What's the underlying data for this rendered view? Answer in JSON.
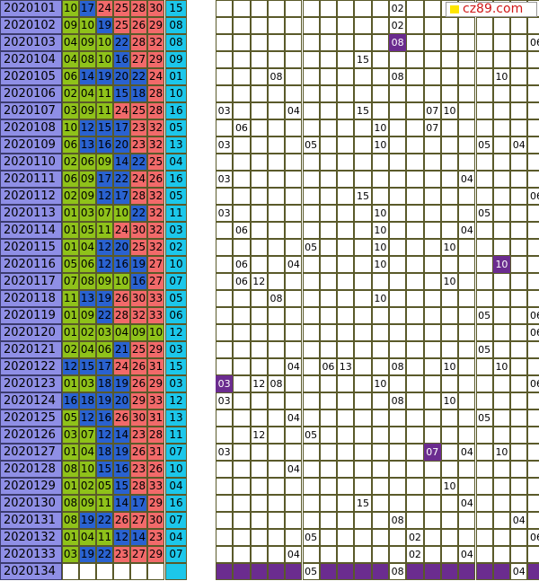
{
  "logo": {
    "text": "cz89.com"
  },
  "rows": [
    {
      "issue": "2020101",
      "reds": [
        "10",
        "17",
        "24",
        "25",
        "28",
        "30"
      ],
      "blue": "15",
      "miss": {
        "10": "02"
      }
    },
    {
      "issue": "2020102",
      "reds": [
        "09",
        "10",
        "19",
        "25",
        "26",
        "29"
      ],
      "blue": "08",
      "miss": {
        "10": "02"
      }
    },
    {
      "issue": "2020103",
      "reds": [
        "04",
        "09",
        "10",
        "22",
        "28",
        "32"
      ],
      "blue": "08",
      "miss": {
        "10": "08",
        "18": "06"
      },
      "purple": [
        "10"
      ]
    },
    {
      "issue": "2020104",
      "reds": [
        "04",
        "08",
        "10",
        "16",
        "27",
        "29"
      ],
      "blue": "09",
      "miss": {
        "8": "15"
      }
    },
    {
      "issue": "2020105",
      "reds": [
        "06",
        "14",
        "19",
        "20",
        "22",
        "24"
      ],
      "blue": "01",
      "miss": {
        "3": "08",
        "10": "08",
        "16": "10"
      }
    },
    {
      "issue": "2020106",
      "reds": [
        "02",
        "04",
        "11",
        "15",
        "18",
        "28"
      ],
      "blue": "10",
      "miss": {}
    },
    {
      "issue": "2020107",
      "reds": [
        "03",
        "09",
        "11",
        "24",
        "25",
        "28"
      ],
      "blue": "16",
      "miss": {
        "0": "03",
        "4": "04",
        "8": "15",
        "12": "07",
        "13": "10"
      }
    },
    {
      "issue": "2020108",
      "reds": [
        "10",
        "12",
        "15",
        "17",
        "23",
        "32"
      ],
      "blue": "05",
      "miss": {
        "1": "06",
        "9": "10",
        "12": "07"
      }
    },
    {
      "issue": "2020109",
      "reds": [
        "06",
        "13",
        "16",
        "20",
        "23",
        "32"
      ],
      "blue": "13",
      "miss": {
        "0": "03",
        "5": "05",
        "9": "10",
        "15": "05",
        "17": "04"
      }
    },
    {
      "issue": "2020110",
      "reds": [
        "02",
        "06",
        "09",
        "14",
        "22",
        "25"
      ],
      "blue": "04",
      "miss": {}
    },
    {
      "issue": "2020111",
      "reds": [
        "06",
        "09",
        "17",
        "22",
        "24",
        "26"
      ],
      "blue": "16",
      "miss": {
        "0": "03",
        "14": "04"
      }
    },
    {
      "issue": "2020112",
      "reds": [
        "02",
        "09",
        "12",
        "17",
        "28",
        "32"
      ],
      "blue": "05",
      "miss": {
        "8": "15",
        "18": "06"
      }
    },
    {
      "issue": "2020113",
      "reds": [
        "01",
        "03",
        "07",
        "10",
        "22",
        "32"
      ],
      "blue": "11",
      "miss": {
        "0": "03",
        "9": "10",
        "15": "05"
      }
    },
    {
      "issue": "2020114",
      "reds": [
        "01",
        "05",
        "11",
        "24",
        "30",
        "32"
      ],
      "blue": "03",
      "miss": {
        "1": "06",
        "9": "10",
        "14": "04"
      }
    },
    {
      "issue": "2020115",
      "reds": [
        "01",
        "04",
        "12",
        "20",
        "25",
        "32"
      ],
      "blue": "02",
      "miss": {
        "5": "05",
        "9": "10",
        "13": "10"
      }
    },
    {
      "issue": "2020116",
      "reds": [
        "05",
        "06",
        "12",
        "16",
        "19",
        "27"
      ],
      "blue": "10",
      "miss": {
        "1": "06",
        "4": "04",
        "9": "10",
        "16": "10"
      },
      "purple": [
        "16"
      ]
    },
    {
      "issue": "2020117",
      "reds": [
        "07",
        "08",
        "09",
        "10",
        "16",
        "27"
      ],
      "blue": "07",
      "miss": {
        "1": "06",
        "2": "12",
        "13": "10"
      }
    },
    {
      "issue": "2020118",
      "reds": [
        "11",
        "13",
        "19",
        "26",
        "30",
        "33"
      ],
      "blue": "05",
      "miss": {
        "3": "08",
        "9": "10"
      }
    },
    {
      "issue": "2020119",
      "reds": [
        "01",
        "09",
        "22",
        "28",
        "32",
        "33"
      ],
      "blue": "06",
      "miss": {
        "15": "05",
        "18": "06"
      }
    },
    {
      "issue": "2020120",
      "reds": [
        "01",
        "02",
        "03",
        "04",
        "09",
        "10"
      ],
      "blue": "12",
      "miss": {
        "18": "06"
      }
    },
    {
      "issue": "2020121",
      "reds": [
        "02",
        "04",
        "06",
        "21",
        "25",
        "29"
      ],
      "blue": "03",
      "miss": {
        "15": "05"
      }
    },
    {
      "issue": "2020122",
      "reds": [
        "12",
        "15",
        "17",
        "24",
        "26",
        "31"
      ],
      "blue": "15",
      "miss": {
        "4": "04",
        "6": "06",
        "7": "13",
        "10": "08",
        "13": "10",
        "16": "10"
      }
    },
    {
      "issue": "2020123",
      "reds": [
        "01",
        "03",
        "18",
        "19",
        "26",
        "29"
      ],
      "blue": "03",
      "miss": {
        "-1": "03",
        "2": "12",
        "3": "08",
        "9": "10",
        "18": "06"
      },
      "purple": [
        "-1"
      ]
    },
    {
      "issue": "2020124",
      "reds": [
        "16",
        "18",
        "19",
        "20",
        "29",
        "33"
      ],
      "blue": "12",
      "miss": {
        "0": "03",
        "10": "08",
        "13": "10"
      }
    },
    {
      "issue": "2020125",
      "reds": [
        "05",
        "12",
        "16",
        "26",
        "30",
        "31"
      ],
      "blue": "13",
      "miss": {
        "4": "04",
        "15": "05"
      }
    },
    {
      "issue": "2020126",
      "reds": [
        "03",
        "07",
        "12",
        "14",
        "23",
        "28"
      ],
      "blue": "11",
      "miss": {
        "2": "12",
        "5": "05"
      }
    },
    {
      "issue": "2020127",
      "reds": [
        "01",
        "04",
        "18",
        "19",
        "26",
        "31"
      ],
      "blue": "07",
      "miss": {
        "0": "03",
        "12": "07",
        "14": "04",
        "16": "10"
      },
      "purple": [
        "12"
      ]
    },
    {
      "issue": "2020128",
      "reds": [
        "08",
        "10",
        "15",
        "16",
        "23",
        "26"
      ],
      "blue": "10",
      "miss": {
        "4": "04"
      }
    },
    {
      "issue": "2020129",
      "reds": [
        "01",
        "02",
        "05",
        "15",
        "28",
        "33"
      ],
      "blue": "04",
      "miss": {
        "13": "10"
      }
    },
    {
      "issue": "2020130",
      "reds": [
        "08",
        "09",
        "11",
        "14",
        "17",
        "29"
      ],
      "blue": "16",
      "miss": {
        "8": "15",
        "14": "04"
      }
    },
    {
      "issue": "2020131",
      "reds": [
        "08",
        "19",
        "22",
        "26",
        "27",
        "30"
      ],
      "blue": "07",
      "miss": {
        "10": "08",
        "17": "04"
      }
    },
    {
      "issue": "2020132",
      "reds": [
        "01",
        "04",
        "11",
        "12",
        "14",
        "23"
      ],
      "blue": "04",
      "miss": {
        "5": "05",
        "11": "02",
        "18": "06"
      }
    },
    {
      "issue": "2020133",
      "reds": [
        "03",
        "19",
        "22",
        "23",
        "27",
        "29"
      ],
      "blue": "07",
      "miss": {
        "4": "04",
        "11": "02",
        "14": "04"
      }
    },
    {
      "issue": "2020134",
      "reds": [
        "",
        "",
        "",
        "",
        "",
        ""
      ],
      "blue": "",
      "miss": {
        "5": "05",
        "10": "08",
        "17": "04"
      },
      "last": true
    }
  ],
  "colors": {
    "issue": "#8f8fe6",
    "green": "#8fc21a",
    "blue": "#2a62d0",
    "red": "#f26a6a",
    "cyan": "#1cc7ea",
    "purple": "#6b2c8f"
  }
}
